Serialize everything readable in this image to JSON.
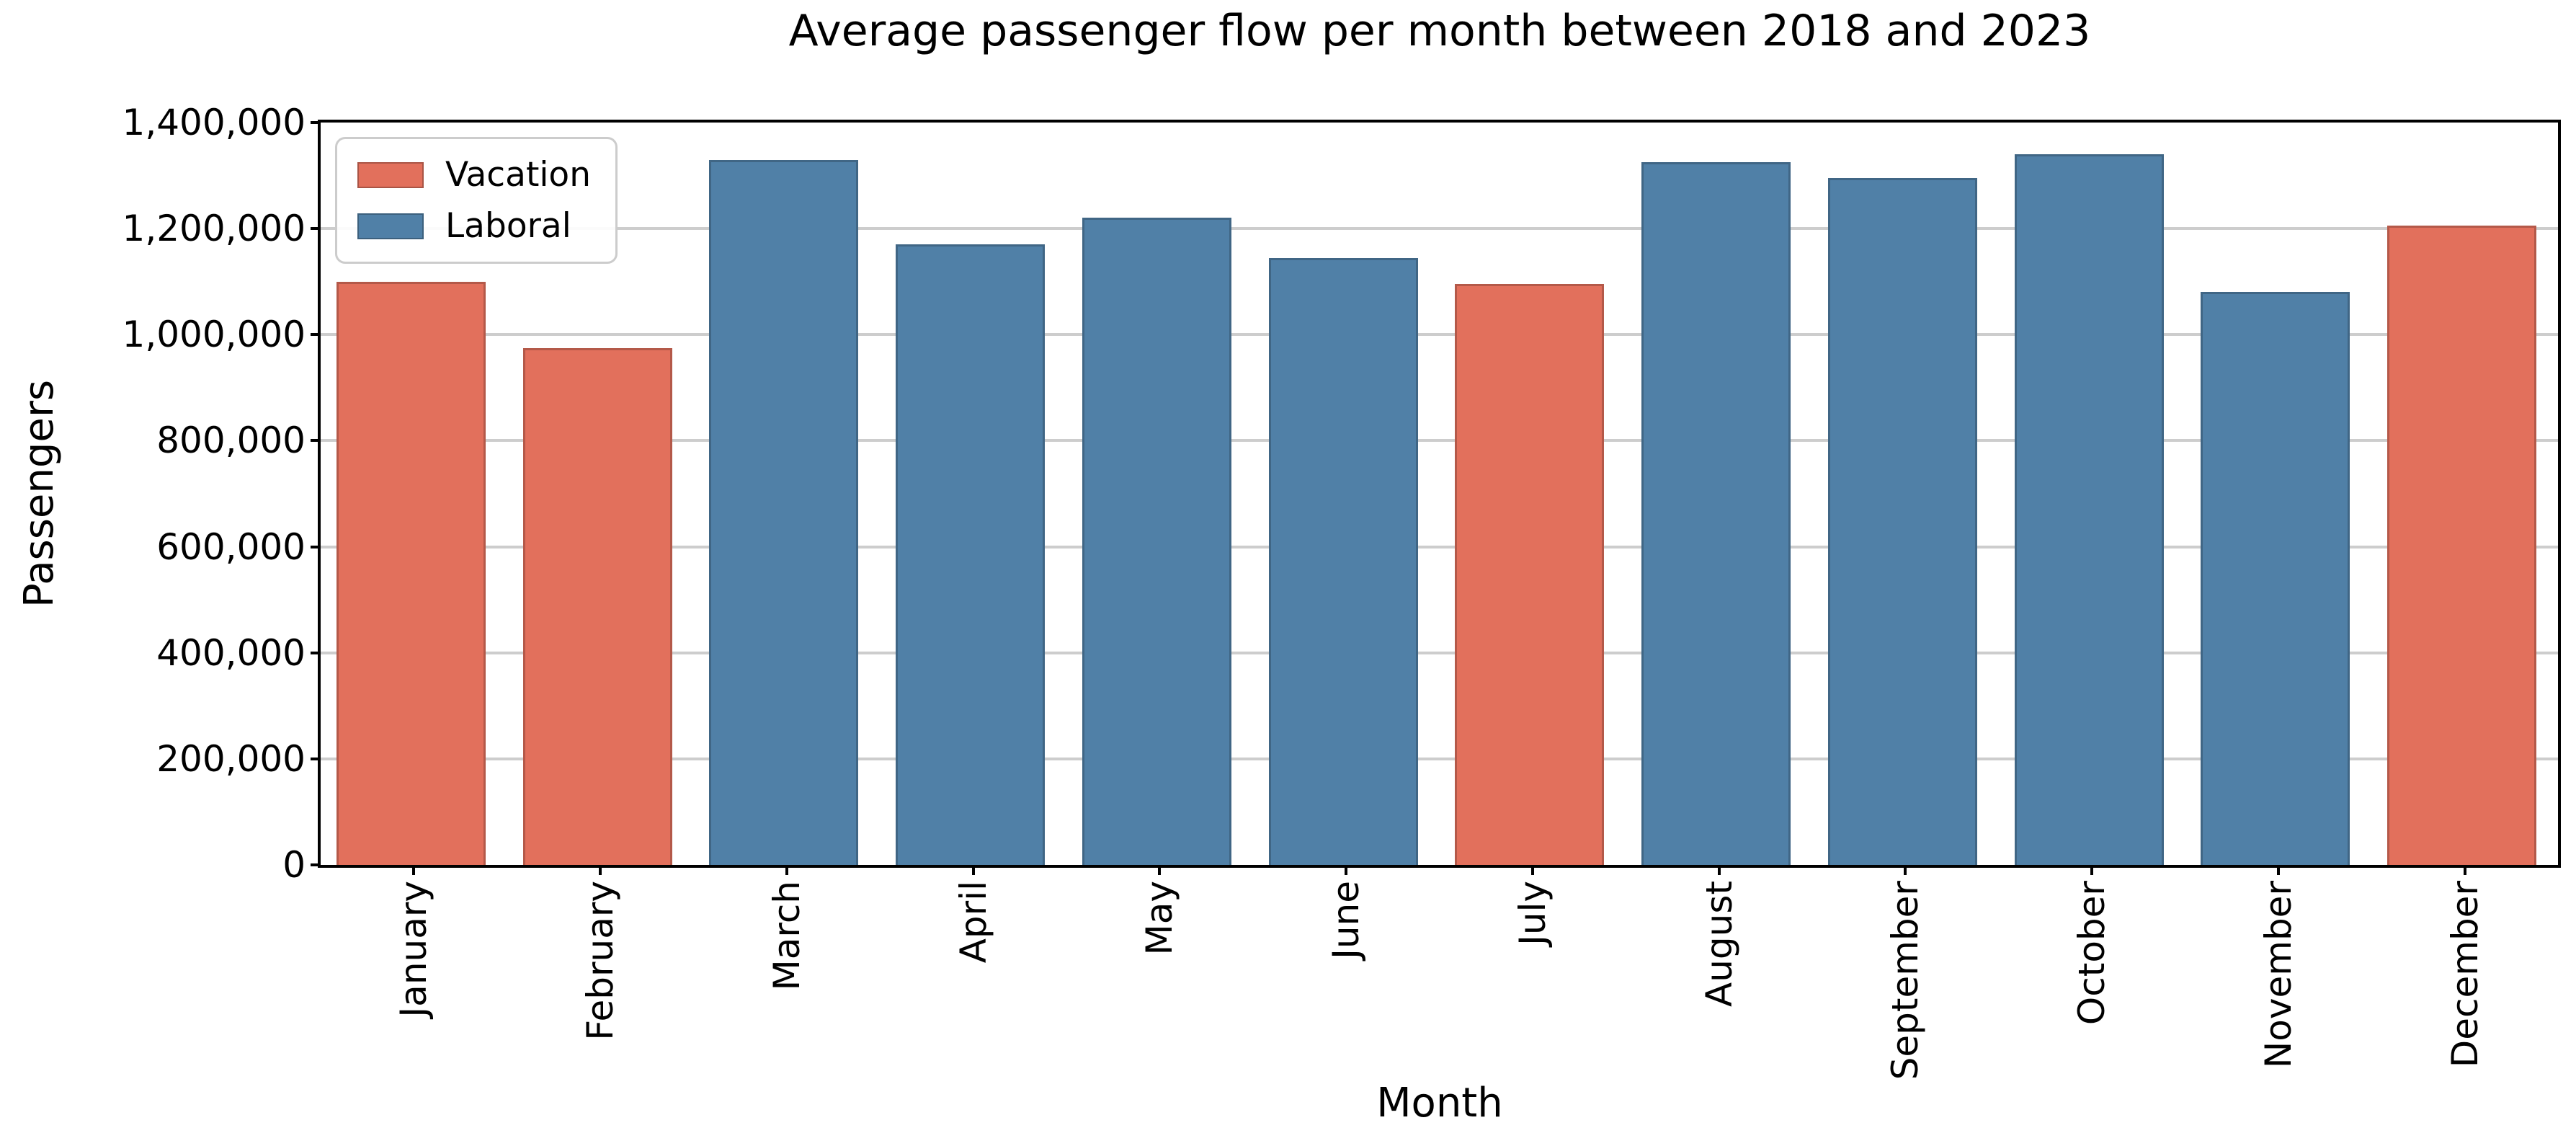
{
  "figure": {
    "title": "Average passenger flow per month between 2018 and 2023",
    "background_color": "#ffffff"
  },
  "chart_data": {
    "type": "bar",
    "title": "Average passenger flow per month between 2018 and 2023",
    "xlabel": "Month",
    "ylabel": "Passengers",
    "categories": [
      "January",
      "February",
      "March",
      "April",
      "May",
      "June",
      "July",
      "August",
      "September",
      "October",
      "November",
      "December"
    ],
    "values": [
      1100000,
      975000,
      1330000,
      1170000,
      1220000,
      1145000,
      1095000,
      1325000,
      1295000,
      1340000,
      1080000,
      1205000
    ],
    "groups": [
      "Vacation",
      "Vacation",
      "Laboral",
      "Laboral",
      "Laboral",
      "Laboral",
      "Vacation",
      "Laboral",
      "Laboral",
      "Laboral",
      "Laboral",
      "Vacation"
    ],
    "colors": {
      "Vacation": "#E2705C",
      "Laboral": "#5080A7"
    },
    "ylim": [
      0,
      1400000
    ],
    "yticks": {
      "values": [
        0,
        200000,
        400000,
        600000,
        800000,
        1000000,
        1200000,
        1400000
      ],
      "labels": [
        "0",
        "200,000",
        "400,000",
        "600,000",
        "800,000",
        "1,000,000",
        "1,200,000",
        "1,400,000"
      ]
    },
    "xtick_rotation": 90,
    "grid": true,
    "grid_color": "#cdcdcd",
    "axis_color": "#000000",
    "legend": {
      "position": "upper-left",
      "entries": [
        {
          "label": "Vacation",
          "color": "#E2705C"
        },
        {
          "label": "Laboral",
          "color": "#5080A7"
        }
      ]
    }
  }
}
